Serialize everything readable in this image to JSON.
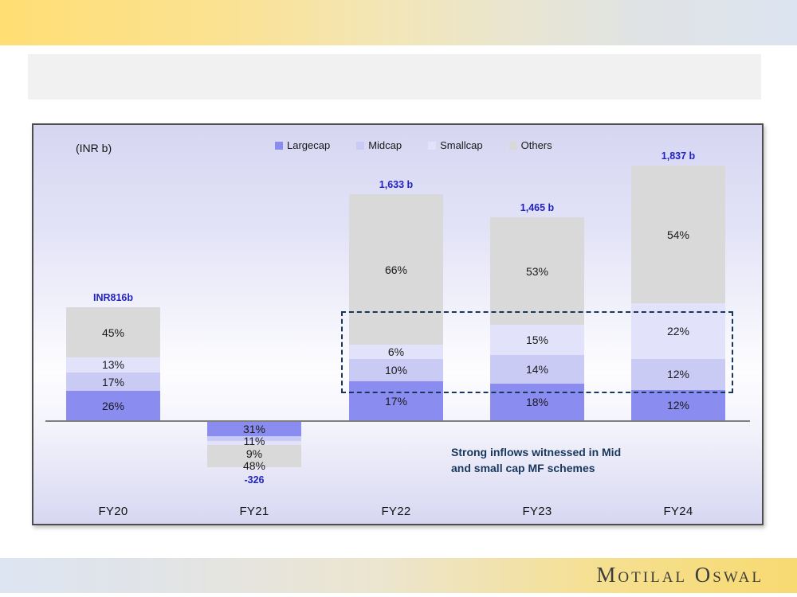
{
  "slide": {
    "logo_text": "Motilal Oswal"
  },
  "chart": {
    "units_label": "(INR b)",
    "annotation": {
      "line1": "Strong inflows witnessed in Mid",
      "line2": "and small cap MF schemes"
    },
    "colors": {
      "largecap": "#8b8cf0",
      "midcap": "#c9cbf5",
      "smallcap": "#e2e3fb",
      "others": "#d9d9d9",
      "value_label_blue": "#2323c3",
      "annotation_navy": "#17375e"
    }
  },
  "chart_data": {
    "type": "bar",
    "stacked": true,
    "unit": "INR b",
    "title": "",
    "xlabel": "",
    "ylabel": "(INR b)",
    "legend_position": "top",
    "categories": [
      "FY20",
      "FY21",
      "FY22",
      "FY23",
      "FY24"
    ],
    "totals_inr_b": [
      816,
      -326,
      1633,
      1465,
      1837
    ],
    "total_labels": [
      "INR816b",
      "-326",
      "1,633 b",
      "1,465 b",
      "1,837 b"
    ],
    "series": [
      {
        "name": "Largecap",
        "color": "#8b8cf0",
        "values_pct": [
          26,
          31,
          17,
          18,
          12
        ]
      },
      {
        "name": "Midcap",
        "color": "#c9cbf5",
        "values_pct": [
          17,
          11,
          10,
          14,
          12
        ]
      },
      {
        "name": "Smallcap",
        "color": "#e2e3fb",
        "values_pct": [
          13,
          9,
          6,
          15,
          22
        ]
      },
      {
        "name": "Others",
        "color": "#d9d9d9",
        "values_pct": [
          45,
          48,
          66,
          53,
          54
        ]
      }
    ]
  }
}
